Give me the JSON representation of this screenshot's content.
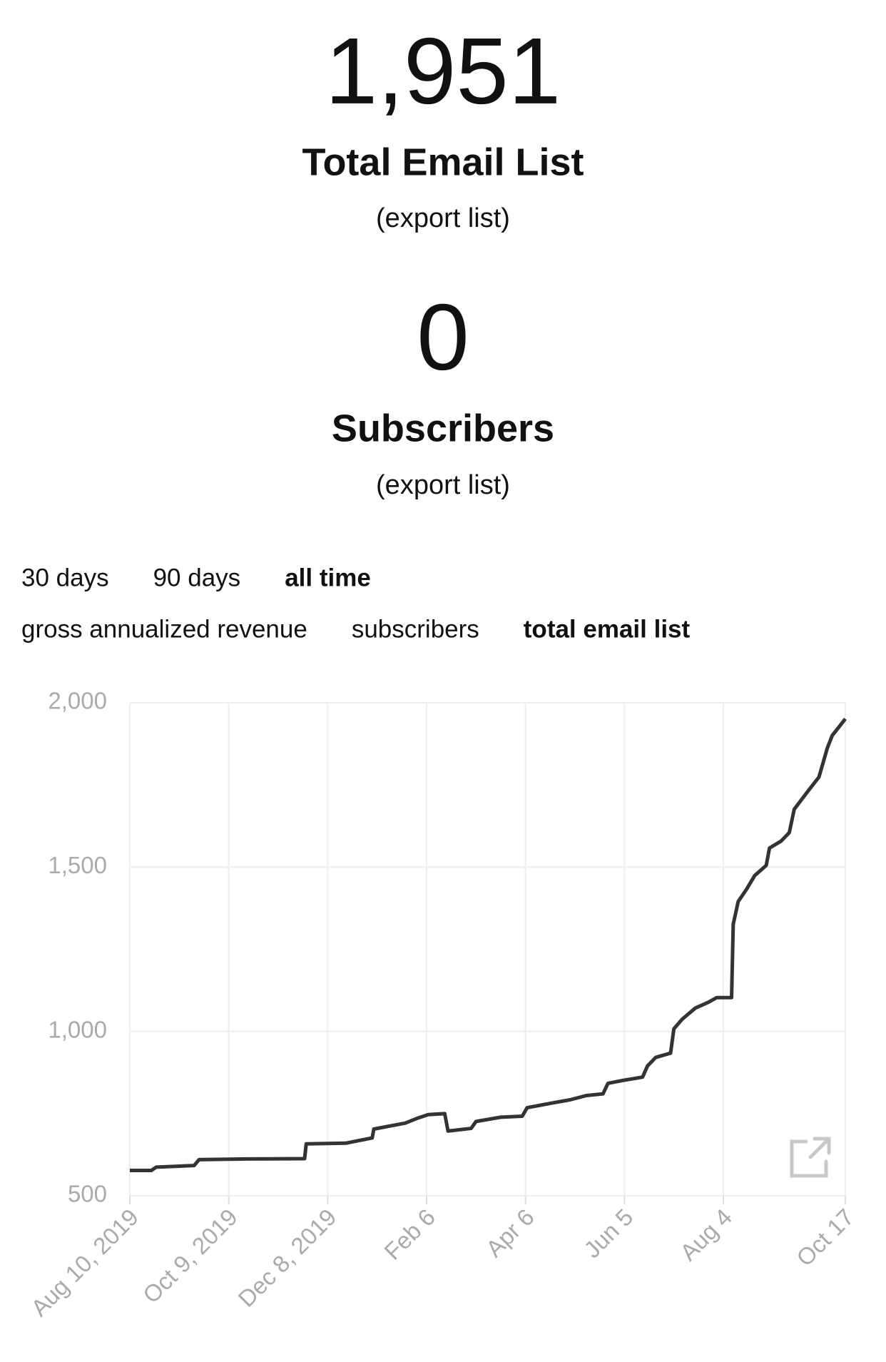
{
  "stats": [
    {
      "value": "1,951",
      "label": "Total Email List",
      "link": "(export list)"
    },
    {
      "value": "0",
      "label": "Subscribers",
      "link": "(export list)"
    }
  ],
  "tabs": {
    "ranges": [
      "30 days",
      "90 days",
      "all time"
    ],
    "active_range": 2,
    "metrics": [
      "gross annualized revenue",
      "subscribers",
      "total email list"
    ],
    "active_metric": 2
  },
  "chart_data": {
    "type": "line",
    "color": "#333333",
    "grid": true,
    "xlim": [
      0,
      434
    ],
    "ylim": [
      500,
      2000
    ],
    "xticks": [
      {
        "value": 0,
        "label": "Aug 10, 2019"
      },
      {
        "value": 60,
        "label": "Oct 9, 2019"
      },
      {
        "value": 120,
        "label": "Dec 8, 2019"
      },
      {
        "value": 180,
        "label": "Feb 6"
      },
      {
        "value": 240,
        "label": "Apr 6"
      },
      {
        "value": 300,
        "label": "Jun 5"
      },
      {
        "value": 360,
        "label": "Aug 4"
      },
      {
        "value": 434,
        "label": "Oct 17"
      }
    ],
    "yticks": [
      500,
      {
        "value": 1000,
        "label": "1,000"
      },
      {
        "value": 1500,
        "label": "1,500"
      },
      {
        "value": 2000,
        "label": "2,000"
      }
    ],
    "x": [
      0,
      13,
      16,
      39,
      42,
      71,
      106,
      107,
      131,
      147,
      148,
      167,
      175,
      181,
      191,
      193,
      207,
      210,
      225,
      238,
      241,
      256,
      267,
      277,
      287,
      290,
      298,
      311,
      314,
      319,
      328,
      330,
      335,
      343,
      351,
      356,
      365,
      366,
      369,
      374,
      379,
      386,
      388,
      395,
      400,
      403,
      411,
      418,
      423,
      426,
      434
    ],
    "values": [
      577,
      577,
      587,
      592,
      610,
      612,
      613,
      658,
      660,
      676,
      703,
      721,
      737,
      747,
      750,
      697,
      705,
      726,
      739,
      742,
      768,
      782,
      792,
      805,
      810,
      842,
      850,
      861,
      895,
      921,
      934,
      1008,
      1037,
      1071,
      1089,
      1103,
      1103,
      1326,
      1395,
      1432,
      1474,
      1505,
      1558,
      1579,
      1605,
      1676,
      1729,
      1774,
      1861,
      1900,
      1951
    ]
  }
}
